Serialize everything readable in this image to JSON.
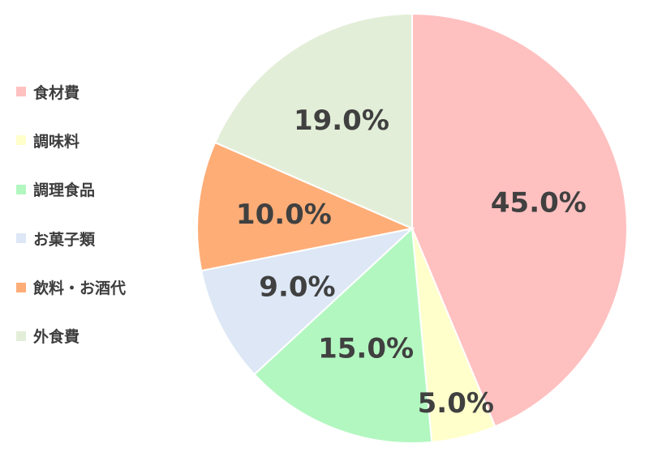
{
  "chart_data": {
    "type": "pie",
    "categories": [
      "食材費",
      "調味料",
      "調理食品",
      "お菓子類",
      "飲料・お酒代",
      "外食費"
    ],
    "values": [
      45.0,
      5.0,
      15.0,
      9.0,
      10.0,
      19.0
    ],
    "value_labels": [
      "45.0%",
      "5.0%",
      "15.0%",
      "9.0%",
      "10.0%",
      "19.0%"
    ],
    "colors": [
      "#ffc0c0",
      "#ffffcc",
      "#b2f7c0",
      "#dde7f5",
      "#ffad77",
      "#e3eed8"
    ],
    "start_angle": "12 o'clock",
    "direction": "clockwise",
    "legend_position": "left",
    "title": ""
  }
}
